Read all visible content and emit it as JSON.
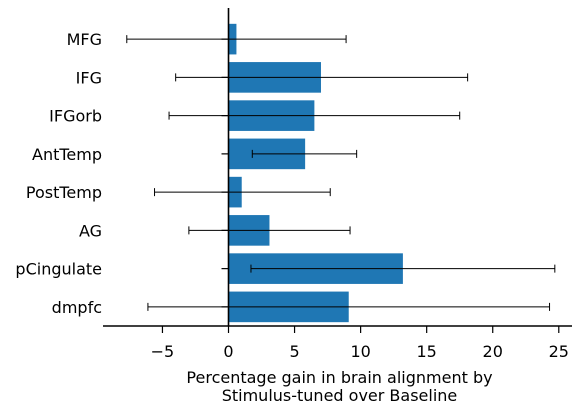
{
  "chart_data": {
    "type": "bar",
    "orientation": "horizontal",
    "categories": [
      "MFG",
      "IFG",
      "IFGorb",
      "AntTemp",
      "PostTemp",
      "AG",
      "pCingulate",
      "dmpfc"
    ],
    "values": [
      0.6,
      7.0,
      6.5,
      5.8,
      1.0,
      3.1,
      13.2,
      9.1
    ],
    "error_low": [
      -7.7,
      -4.0,
      -4.5,
      1.8,
      -5.6,
      -3.0,
      1.7,
      -6.1
    ],
    "error_high": [
      8.9,
      18.1,
      17.5,
      9.7,
      7.7,
      9.2,
      24.7,
      24.3
    ],
    "xlabel": [
      "Percentage gain in brain alignment by",
      "Stimulus-tuned over Baseline"
    ],
    "ylabel": "",
    "title": "",
    "xlim": [
      -9.5,
      26
    ],
    "xticks": [
      -5,
      0,
      5,
      10,
      15,
      20,
      25
    ],
    "xtick_labels": [
      "−5",
      "0",
      "5",
      "10",
      "15",
      "20",
      "25"
    ],
    "grid": false,
    "bar_color": "#1f77b4",
    "error_color": "#000000"
  }
}
